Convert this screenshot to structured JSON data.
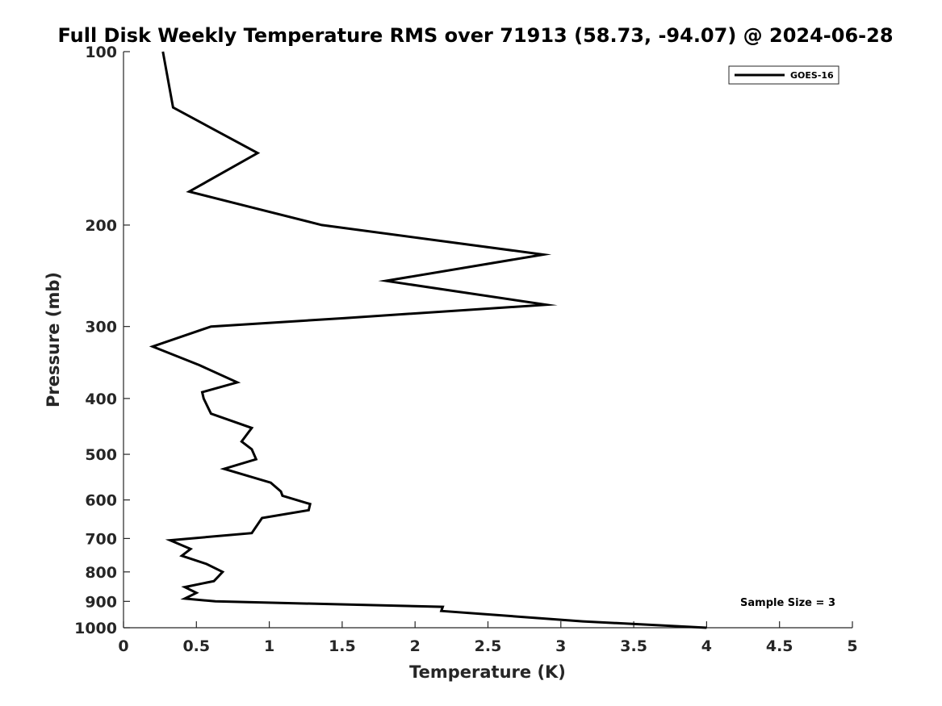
{
  "chart_data": {
    "type": "line",
    "title": "Full Disk Weekly Temperature RMS over 71913 (58.73, -94.07) @ 2024-06-28",
    "xlabel": "Temperature (K)",
    "ylabel": "Pressure (mb)",
    "xlim": [
      0,
      5
    ],
    "ylim": [
      100,
      1000
    ],
    "y_scale": "log",
    "y_reversed": true,
    "x_ticks": [
      0,
      0.5,
      1,
      1.5,
      2,
      2.5,
      3,
      3.5,
      4,
      4.5,
      5
    ],
    "x_tick_labels": [
      "0",
      "0.5",
      "1",
      "1.5",
      "2",
      "2.5",
      "3",
      "3.5",
      "4",
      "4.5",
      "5"
    ],
    "y_ticks": [
      100,
      200,
      300,
      400,
      500,
      600,
      700,
      800,
      900,
      1000
    ],
    "y_tick_labels": [
      "100",
      "200",
      "300",
      "400",
      "500",
      "600",
      "700",
      "800",
      "900",
      "1000"
    ],
    "grid": false,
    "legend_position": "top-right",
    "annotation": "Sample Size = 3",
    "series": [
      {
        "name": "GOES-16",
        "color": "#000000",
        "points": [
          [
            0.27,
            100
          ],
          [
            0.34,
            125
          ],
          [
            0.92,
            150
          ],
          [
            0.45,
            175
          ],
          [
            1.36,
            200
          ],
          [
            2.88,
            225
          ],
          [
            1.8,
            250
          ],
          [
            2.9,
            275
          ],
          [
            1.52,
            290
          ],
          [
            0.6,
            300
          ],
          [
            0.2,
            325
          ],
          [
            0.52,
            350
          ],
          [
            0.78,
            375
          ],
          [
            0.54,
            390
          ],
          [
            0.55,
            400
          ],
          [
            0.6,
            425
          ],
          [
            0.88,
            450
          ],
          [
            0.81,
            475
          ],
          [
            0.88,
            490
          ],
          [
            0.91,
            510
          ],
          [
            0.69,
            530
          ],
          [
            1.01,
            560
          ],
          [
            1.08,
            580
          ],
          [
            1.09,
            590
          ],
          [
            1.28,
            610
          ],
          [
            1.27,
            625
          ],
          [
            0.95,
            645
          ],
          [
            0.88,
            685
          ],
          [
            0.32,
            705
          ],
          [
            0.46,
            730
          ],
          [
            0.4,
            750
          ],
          [
            0.57,
            775
          ],
          [
            0.68,
            800
          ],
          [
            0.65,
            815
          ],
          [
            0.62,
            830
          ],
          [
            0.42,
            850
          ],
          [
            0.5,
            870
          ],
          [
            0.42,
            890
          ],
          [
            0.63,
            900
          ],
          [
            2.19,
            920
          ],
          [
            2.18,
            935
          ],
          [
            3.15,
            975
          ],
          [
            4.0,
            1000
          ]
        ]
      }
    ]
  }
}
